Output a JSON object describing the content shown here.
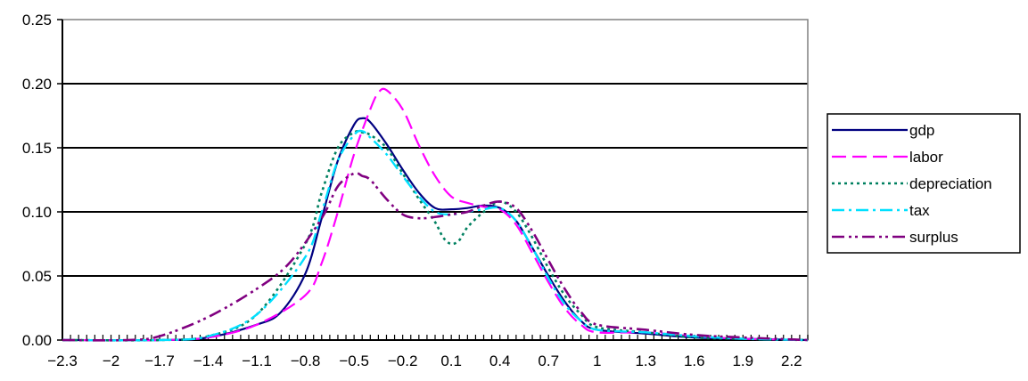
{
  "chart_data": {
    "type": "line",
    "title": "",
    "xlabel": "",
    "ylabel": "",
    "xlim": [
      -2.3,
      2.3
    ],
    "ylim": [
      0,
      0.25
    ],
    "x_tick_labels": [
      "-2.3",
      "-2",
      "-1.7",
      "-1.4",
      "-1.1",
      "-0.8",
      "-0.5",
      "-0.2",
      "0.1",
      "0.4",
      "0.7",
      "1",
      "1.3",
      "1.6",
      "1.9",
      "2.2"
    ],
    "y_tick_labels": [
      "0.00",
      "0.05",
      "0.10",
      "0.15",
      "0.20",
      "0.25"
    ],
    "grid": "horizontal major gridlines",
    "legend_position": "right",
    "series": [
      {
        "name": "gdp",
        "color": "#000080",
        "dash": "solid",
        "x": [
          -2.3,
          -1.7,
          -1.4,
          -1.1,
          -0.95,
          -0.8,
          -0.7,
          -0.6,
          -0.5,
          -0.45,
          -0.4,
          -0.3,
          -0.2,
          -0.1,
          0,
          0.1,
          0.2,
          0.3,
          0.4,
          0.5,
          0.6,
          0.7,
          0.8,
          0.9,
          1.0,
          1.3,
          1.6,
          1.9,
          2.3
        ],
        "y": [
          0,
          0,
          0.002,
          0.012,
          0.022,
          0.052,
          0.095,
          0.14,
          0.168,
          0.173,
          0.17,
          0.153,
          0.133,
          0.115,
          0.103,
          0.102,
          0.103,
          0.105,
          0.103,
          0.093,
          0.072,
          0.05,
          0.03,
          0.015,
          0.008,
          0.005,
          0.002,
          0.001,
          0
        ]
      },
      {
        "name": "labor",
        "color": "#ff00ff",
        "dash": "long-dash",
        "x": [
          -2.3,
          -1.7,
          -1.4,
          -1.1,
          -0.8,
          -0.7,
          -0.6,
          -0.5,
          -0.4,
          -0.35,
          -0.3,
          -0.2,
          -0.1,
          0,
          0.1,
          0.2,
          0.3,
          0.4,
          0.5,
          0.6,
          0.7,
          0.8,
          0.9,
          1.0,
          1.3,
          1.6,
          1.9,
          2.3
        ],
        "y": [
          0,
          0,
          0.002,
          0.012,
          0.035,
          0.06,
          0.1,
          0.145,
          0.18,
          0.193,
          0.195,
          0.18,
          0.152,
          0.128,
          0.112,
          0.107,
          0.104,
          0.102,
          0.09,
          0.068,
          0.045,
          0.025,
          0.012,
          0.006,
          0.006,
          0.003,
          0.001,
          0
        ]
      },
      {
        "name": "depreciation",
        "color": "#008060",
        "dash": "dotted",
        "x": [
          -2.3,
          -1.7,
          -1.4,
          -1.1,
          -0.8,
          -0.7,
          -0.6,
          -0.5,
          -0.45,
          -0.4,
          -0.3,
          -0.2,
          -0.1,
          0,
          0.05,
          0.1,
          0.15,
          0.2,
          0.3,
          0.4,
          0.5,
          0.6,
          0.7,
          0.8,
          0.9,
          1.0,
          1.3,
          1.6,
          1.9,
          2.3
        ],
        "y": [
          0,
          0,
          0.003,
          0.02,
          0.075,
          0.115,
          0.15,
          0.162,
          0.162,
          0.16,
          0.15,
          0.13,
          0.11,
          0.092,
          0.08,
          0.075,
          0.078,
          0.088,
          0.1,
          0.108,
          0.1,
          0.08,
          0.056,
          0.035,
          0.02,
          0.01,
          0.006,
          0.002,
          0.001,
          0
        ]
      },
      {
        "name": "tax",
        "color": "#00e0ff",
        "dash": "dash-dot",
        "x": [
          -2.3,
          -1.7,
          -1.4,
          -1.1,
          -0.8,
          -0.7,
          -0.6,
          -0.5,
          -0.45,
          -0.4,
          -0.3,
          -0.2,
          -0.1,
          0,
          0.1,
          0.2,
          0.3,
          0.4,
          0.5,
          0.6,
          0.7,
          0.8,
          0.9,
          1.0,
          1.3,
          1.6,
          1.9,
          2.3
        ],
        "y": [
          0,
          0,
          0.003,
          0.02,
          0.065,
          0.1,
          0.14,
          0.16,
          0.163,
          0.158,
          0.145,
          0.128,
          0.112,
          0.1,
          0.098,
          0.1,
          0.102,
          0.103,
          0.093,
          0.072,
          0.048,
          0.028,
          0.015,
          0.008,
          0.006,
          0.003,
          0.001,
          0
        ]
      },
      {
        "name": "surplus",
        "color": "#800080",
        "dash": "dash-dot-dot",
        "x": [
          -2.3,
          -1.9,
          -1.7,
          -1.4,
          -1.1,
          -0.9,
          -0.7,
          -0.6,
          -0.5,
          -0.45,
          -0.4,
          -0.3,
          -0.2,
          -0.1,
          0,
          0.1,
          0.2,
          0.3,
          0.4,
          0.5,
          0.6,
          0.7,
          0.8,
          0.9,
          1.0,
          1.3,
          1.6,
          1.9,
          2.3
        ],
        "y": [
          0,
          0,
          0.003,
          0.018,
          0.04,
          0.06,
          0.095,
          0.12,
          0.13,
          0.128,
          0.125,
          0.11,
          0.098,
          0.095,
          0.096,
          0.098,
          0.1,
          0.105,
          0.108,
          0.103,
          0.085,
          0.062,
          0.04,
          0.022,
          0.012,
          0.008,
          0.004,
          0.002,
          0
        ]
      }
    ]
  }
}
